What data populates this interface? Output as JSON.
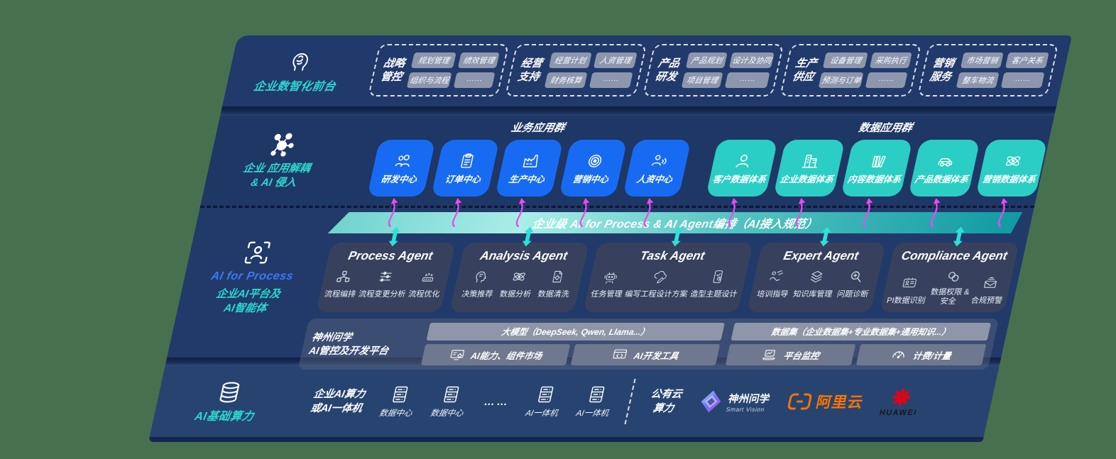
{
  "page": {
    "bg": "#47704F",
    "panel_navy": "#22396B",
    "accent_teal": "#2BD9CE",
    "accent_blue": "#3C79F5",
    "box_blue": "#176BF3",
    "box_teal": "#2BCEC4",
    "magenta": "#E94BEF",
    "alibaba_orange": "#FF7300",
    "huawei_red": "#E60012"
  },
  "decorations": {
    "flow_arrow_icon": "flow-arrow-icon",
    "updown_arrow_icon": "updown-arrow-icon"
  },
  "front_office": {
    "icon": "head-brain-icon",
    "label": "企业数智化前台",
    "groups": [
      {
        "title": "战略管控",
        "items": [
          "规划管理",
          "绩效管理",
          "组织与流程",
          "……"
        ]
      },
      {
        "title": "经营支持",
        "items": [
          "经营计划",
          "人资管理",
          "财务核算",
          "……"
        ]
      },
      {
        "title": "产品研发",
        "items": [
          "产品规划",
          "设计及协同",
          "项目管理",
          "……"
        ]
      },
      {
        "title": "生产供应",
        "items": [
          "设备管理",
          "采购执行",
          "预测与订单",
          "……"
        ]
      },
      {
        "title": "营销服务",
        "items": [
          "市场营销",
          "客户关系",
          "整车物流",
          "……"
        ]
      }
    ]
  },
  "app_layer": {
    "icon": "molecule-icon",
    "label_line1": "企业 应用解耦",
    "label_line2": "& AI 侵入",
    "business": {
      "title": "业务应用群",
      "boxes": [
        {
          "label": "研发中心",
          "icon": "team-icon"
        },
        {
          "label": "订单中心",
          "icon": "clipboard-icon"
        },
        {
          "label": "生产中心",
          "icon": "factory-icon"
        },
        {
          "label": "营销中心",
          "icon": "target-icon"
        },
        {
          "label": "人资中心",
          "icon": "person-signal-icon"
        }
      ]
    },
    "data": {
      "title": "数据应用群",
      "boxes": [
        {
          "label": "客户数据体系",
          "icon": "user-icon"
        },
        {
          "label": "企业数据体系",
          "icon": "building-icon"
        },
        {
          "label": "内容数据体系",
          "icon": "books-icon"
        },
        {
          "label": "产品数据体系",
          "icon": "car-icon"
        },
        {
          "label": "营销数据体系",
          "icon": "atom-icon"
        }
      ]
    }
  },
  "band": {
    "label": "企业级 AI for Process & AI Agent编排（AI接入规范）"
  },
  "ai_platform": {
    "icon": "person-frame-icon",
    "label_line1": "AI for Process",
    "label_line2": "企业AI平台及",
    "label_line3": "AI智能体",
    "agents": [
      {
        "title": "Process Agent",
        "items": [
          {
            "label": "流程编排",
            "icon": "flow-icon"
          },
          {
            "label": "流程变更分析",
            "icon": "sliders-icon"
          },
          {
            "label": "流程优化",
            "icon": "machine-icon"
          }
        ]
      },
      {
        "title": "Analysis Agent",
        "items": [
          {
            "label": "决策推荐",
            "icon": "idea-head-icon"
          },
          {
            "label": "数据分析",
            "icon": "atom-icon"
          },
          {
            "label": "数据清洗",
            "icon": "doc-gear-icon"
          }
        ]
      },
      {
        "title": "Task Agent",
        "items": [
          {
            "label": "任务管理",
            "icon": "robot-icon"
          },
          {
            "label": "编写工程设计方案",
            "icon": "cloud-pen-icon"
          },
          {
            "label": "造型主题设计",
            "icon": "tablet-check-icon"
          }
        ]
      },
      {
        "title": "Expert Agent",
        "items": [
          {
            "label": "培训指导",
            "icon": "training-icon"
          },
          {
            "label": "知识库管理",
            "icon": "layers-icon"
          },
          {
            "label": "问题诊断",
            "icon": "diagnose-icon"
          }
        ]
      },
      {
        "title": "Compliance Agent",
        "items": [
          {
            "label": "PI数据识别",
            "icon": "id-card-icon"
          },
          {
            "label": "数据权限 & 安全",
            "icon": "links-icon"
          },
          {
            "label": "合规预警",
            "icon": "mail-alert-icon"
          }
        ]
      }
    ],
    "platform": {
      "label_line1": "神州问学",
      "label_line2": "AI管控及开发平台",
      "model_bar": "大模型（DeepSeek, Qwen, Llama...）",
      "model_cells": [
        {
          "label": "AI能力、组件市场",
          "icon": "ai-market-icon"
        },
        {
          "label": "AI开发工具",
          "icon": "dev-tools-icon"
        }
      ],
      "data_bar": "数据集（企业数据集+专业数据集+通用知识...）",
      "data_cells": [
        {
          "label": "平台监控",
          "icon": "monitor-icon"
        },
        {
          "label": "计费/计量",
          "icon": "gauge-icon"
        }
      ]
    }
  },
  "infra": {
    "icon": "database-icon",
    "label": "AI基础算力",
    "compute_label_line1": "企业AI算力",
    "compute_label_line2": "或AI一体机",
    "nodes": [
      {
        "label": "数据中心",
        "icon": "server-icon"
      },
      {
        "label": "数据中心",
        "icon": "server-icon"
      }
    ],
    "ellipsis": "……",
    "nodes2": [
      {
        "label": "AI一体机",
        "icon": "server-icon"
      },
      {
        "label": "AI一体机",
        "icon": "server-icon"
      }
    ],
    "public_cloud_line1": "公有云",
    "public_cloud_line2": "算力",
    "logos": [
      {
        "name": "神州问学",
        "sub": "Smart Vision",
        "icon": "diamond-logo-icon"
      },
      {
        "name": "阿里云",
        "icon": "alibaba-icon"
      },
      {
        "name": "HUAWEI",
        "icon": "huawei-icon"
      }
    ]
  }
}
